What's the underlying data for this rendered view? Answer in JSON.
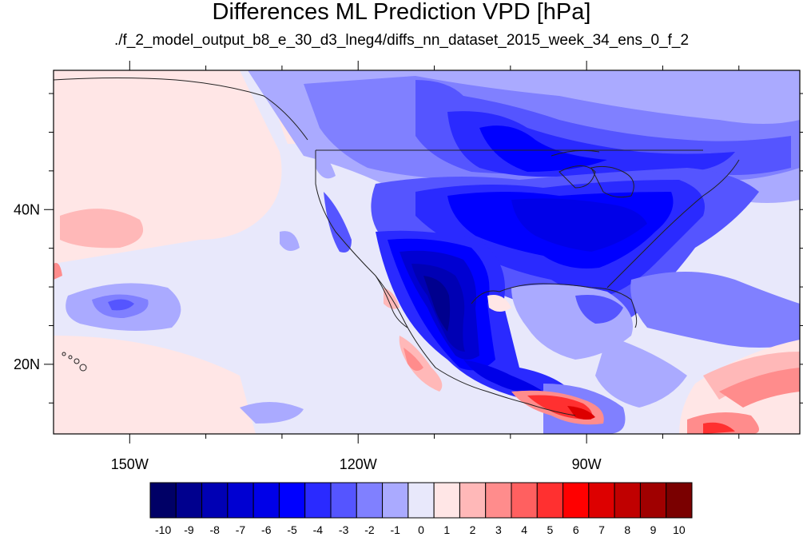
{
  "title": "Differences ML Prediction VPD [hPa]",
  "subtitle": "./f_2_model_output_b8_e_30_d3_lneg4/diffs_nn_dataset_2015_week_34_ens_0_f_2",
  "map": {
    "lon_range": [
      -160,
      -62
    ],
    "lat_range": [
      11,
      58
    ],
    "lon_ticks": [
      {
        "value": -150,
        "label": "150W"
      },
      {
        "value": -120,
        "label": "120W"
      },
      {
        "value": -90,
        "label": "90W"
      }
    ],
    "lat_ticks": [
      {
        "value": 40,
        "label": "40N"
      },
      {
        "value": 20,
        "label": "20N"
      }
    ]
  },
  "colorbar": {
    "colors": [
      "#000066",
      "#00008e",
      "#0000b4",
      "#0000d2",
      "#0000e8",
      "#0000ff",
      "#2a2aff",
      "#5555ff",
      "#8080ff",
      "#aaaaff",
      "#e8e8fb",
      "#ffe6e6",
      "#ffb8b8",
      "#ff8c8c",
      "#ff6060",
      "#ff3030",
      "#ff0000",
      "#dd0000",
      "#c00000",
      "#a00000",
      "#7a0000"
    ],
    "labels": [
      "-10",
      "-9",
      "-8",
      "-7",
      "-6",
      "-5",
      "-4",
      "-3",
      "-2",
      "-1",
      "0",
      "1",
      "2",
      "3",
      "4",
      "5",
      "6",
      "7",
      "8",
      "9",
      "10"
    ]
  }
}
